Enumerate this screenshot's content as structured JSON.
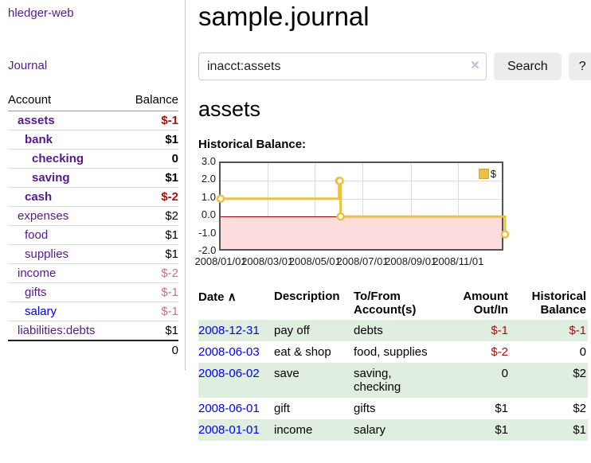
{
  "sidebar": {
    "brand": "hledger-web",
    "nav_journal": "Journal",
    "header": {
      "account": "Account",
      "balance": "Balance"
    },
    "rows": [
      {
        "label": "assets",
        "depth": 1,
        "bold": true,
        "balance": "$-1",
        "balance_style": "neg",
        "link": "purple"
      },
      {
        "label": "bank",
        "depth": 2,
        "bold": true,
        "balance": "$1",
        "balance_style": "pos",
        "link": "purple"
      },
      {
        "label": "checking",
        "depth": 3,
        "bold": true,
        "balance": "0",
        "balance_style": "pos",
        "link": "purple"
      },
      {
        "label": "saving",
        "depth": 3,
        "bold": true,
        "balance": "$1",
        "balance_style": "pos",
        "link": "purple"
      },
      {
        "label": "cash",
        "depth": 2,
        "bold": true,
        "balance": "$-2",
        "balance_style": "neg",
        "link": "purple"
      },
      {
        "label": "expenses",
        "depth": 1,
        "bold": false,
        "balance": "$2",
        "balance_style": "pos",
        "link": "purple"
      },
      {
        "label": "food",
        "depth": 2,
        "bold": false,
        "balance": "$1",
        "balance_style": "pos",
        "link": "purple"
      },
      {
        "label": "supplies",
        "depth": 2,
        "bold": false,
        "balance": "$1",
        "balance_style": "pos",
        "link": "purple"
      },
      {
        "label": "income",
        "depth": 1,
        "bold": false,
        "balance": "$-2",
        "balance_style": "negsoft",
        "link": "purple"
      },
      {
        "label": "gifts",
        "depth": 2,
        "bold": false,
        "balance": "$-1",
        "balance_style": "negsoft",
        "link": "purple"
      },
      {
        "label": "salary",
        "depth": 2,
        "bold": false,
        "balance": "$-1",
        "balance_style": "negsoft",
        "link": "blue"
      },
      {
        "label": "liabilities:debts",
        "depth": 1,
        "bold": false,
        "balance": "$1",
        "balance_style": "pos",
        "link": "purple"
      }
    ],
    "total": "0"
  },
  "main": {
    "title": "sample.journal",
    "search": {
      "value": "inacct:assets",
      "clear_icon": "×",
      "button_label": "Search",
      "help_label": "?"
    },
    "account_heading": "assets",
    "chart_label": "Historical Balance:"
  },
  "chart_data": {
    "type": "line",
    "step": true,
    "title": "Historical Balance:",
    "series": [
      {
        "name": "$",
        "color": "#e8c240",
        "points": [
          [
            "2008-01-01",
            1
          ],
          [
            "2008-06-01",
            2
          ],
          [
            "2008-06-02",
            2
          ],
          [
            "2008-06-03",
            0
          ],
          [
            "2008-12-31",
            -1
          ]
        ]
      }
    ],
    "ylim": [
      -2,
      3
    ],
    "yticks": [
      "3.0",
      "2.0",
      "1.0",
      "0.0",
      "-1.0",
      "-2.0"
    ],
    "xticks": [
      {
        "date": "2008-01-01",
        "label": "2008/01/01"
      },
      {
        "date": "2008-03-01",
        "label": "2008/03/01"
      },
      {
        "date": "2008-05-01",
        "label": "2008/05/01"
      },
      {
        "date": "2008-07-01",
        "label": "2008/07/01"
      },
      {
        "date": "2008-09-01",
        "label": "2008/09/01"
      },
      {
        "date": "2008-11-01",
        "label": "2008/11/01"
      }
    ],
    "x_range": [
      "2008-01-01",
      "2008-12-31"
    ],
    "grid": true,
    "negative_region_color": "#fcdcdc",
    "zero_line_color": "#990000",
    "legend": {
      "label": "$",
      "position": "top-right"
    }
  },
  "register": {
    "headers": {
      "date": "Date",
      "sort_icon": "∧",
      "description": "Description",
      "accounts": "To/From Account(s)",
      "amount": "Amount Out/In",
      "balance": "Historical Balance"
    },
    "rows": [
      {
        "date": "2008-12-31",
        "description": "pay off",
        "accounts": "debts",
        "amount": "$-1",
        "amount_neg": true,
        "balance": "$-1",
        "balance_neg": true,
        "shaded": true
      },
      {
        "date": "2008-06-03",
        "description": "eat & shop",
        "accounts": "food, supplies",
        "amount": "$-2",
        "amount_neg": true,
        "balance": "0",
        "balance_neg": false,
        "shaded": false
      },
      {
        "date": "2008-06-02",
        "description": "save",
        "accounts": "saving, checking",
        "amount": "0",
        "amount_neg": false,
        "balance": "$2",
        "balance_neg": false,
        "shaded": true
      },
      {
        "date": "2008-06-01",
        "description": "gift",
        "accounts": "gifts",
        "amount": "$1",
        "amount_neg": false,
        "balance": "$2",
        "balance_neg": false,
        "shaded": false
      },
      {
        "date": "2008-01-01",
        "description": "income",
        "accounts": "salary",
        "amount": "$1",
        "amount_neg": false,
        "balance": "$1",
        "balance_neg": false,
        "shaded": true
      }
    ]
  }
}
